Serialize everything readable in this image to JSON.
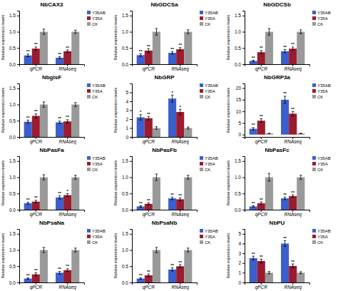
{
  "chart_data": [
    {
      "type": "bar",
      "title": "NbCAX3",
      "y_label": "Relative expression levels",
      "categories": [
        "qPCR",
        "RNAseq"
      ],
      "series": [
        {
          "name": "Y35AB",
          "color": "#3b5fcc",
          "values": [
            0.27,
            0.2
          ],
          "errors": [
            0.04,
            0.03
          ],
          "stars": [
            "**",
            "**"
          ]
        },
        {
          "name": "Y35A",
          "color": "#9b1c2e",
          "values": [
            0.48,
            0.4
          ],
          "errors": [
            0.05,
            0.04
          ],
          "stars": [
            "**",
            "**"
          ]
        },
        {
          "name": "CK",
          "color": "#999999",
          "values": [
            1.0,
            1.0
          ],
          "errors": [
            0.08,
            0.05
          ]
        }
      ],
      "ylim": [
        0,
        1.65
      ],
      "yticks": [
        {
          "value": 0.0,
          "label": "0.0"
        },
        0.5,
        {
          "value": 1.0,
          "label": "1.0"
        },
        1.5
      ],
      "legend": "upper right"
    },
    {
      "type": "bar",
      "title": "NbGDCSa",
      "y_label": "Relative expression levels",
      "categories": [
        "qPCR",
        "RNAseq"
      ],
      "series": [
        {
          "name": "Y35AB",
          "color": "#3b5fcc",
          "values": [
            0.28,
            0.35
          ],
          "errors": [
            0.04,
            0.04
          ],
          "stars": [
            "**",
            "**"
          ]
        },
        {
          "name": "Y35A",
          "color": "#9b1c2e",
          "values": [
            0.42,
            0.46
          ],
          "errors": [
            0.06,
            0.05
          ],
          "stars": [
            "**",
            "**"
          ]
        },
        {
          "name": "CK",
          "color": "#999999",
          "values": [
            1.0,
            1.0
          ],
          "errors": [
            0.1,
            0.06
          ]
        }
      ],
      "ylim": [
        0,
        1.65
      ],
      "yticks": [
        {
          "value": 0.0,
          "label": "0.0"
        },
        0.5,
        {
          "value": 1.0,
          "label": "1.0"
        },
        1.5
      ],
      "legend": "upper right"
    },
    {
      "type": "bar",
      "title": "NbGDCSb",
      "y_label": "Relative expression levels",
      "categories": [
        "qPCR",
        "RNAseq"
      ],
      "series": [
        {
          "name": "Y35AB",
          "color": "#3b5fcc",
          "values": [
            0.1,
            0.4
          ],
          "errors": [
            0.02,
            0.05
          ],
          "stars": [
            "**",
            "**"
          ]
        },
        {
          "name": "Y35A",
          "color": "#9b1c2e",
          "values": [
            0.37,
            0.48
          ],
          "errors": [
            0.05,
            0.05
          ],
          "stars": [
            "**",
            "**"
          ]
        },
        {
          "name": "CK",
          "color": "#999999",
          "values": [
            1.0,
            1.0
          ],
          "errors": [
            0.1,
            0.06
          ]
        }
      ],
      "ylim": [
        0,
        1.65
      ],
      "yticks": [
        {
          "value": 0.0,
          "label": "0.0"
        },
        0.5,
        {
          "value": 1.0,
          "label": "1.0"
        },
        1.5
      ],
      "legend": "upper right"
    },
    {
      "type": "bar",
      "title": "NbglsF",
      "y_label": "Relative expression levels",
      "categories": [
        "qPCR",
        "RNAseq"
      ],
      "series": [
        {
          "name": "Y35AB",
          "color": "#3b5fcc",
          "values": [
            0.47,
            0.45
          ],
          "errors": [
            0.05,
            0.04
          ],
          "stars": [
            "**",
            "**"
          ]
        },
        {
          "name": "Y35A",
          "color": "#9b1c2e",
          "values": [
            0.65,
            0.48
          ],
          "errors": [
            0.06,
            0.05
          ],
          "stars": [
            "**",
            "**"
          ]
        },
        {
          "name": "CK",
          "color": "#999999",
          "values": [
            1.0,
            1.0
          ],
          "errors": [
            0.08,
            0.06
          ]
        }
      ],
      "ylim": [
        0,
        1.65
      ],
      "yticks": [
        {
          "value": 0.0,
          "label": "0.0"
        },
        0.5,
        {
          "value": 1.0,
          "label": "1.0"
        },
        1.5
      ],
      "legend": "upper right"
    },
    {
      "type": "bar",
      "title": "NbGRP",
      "y_label": "Relative expression levels",
      "categories": [
        "qPCR",
        "RNAseq"
      ],
      "series": [
        {
          "name": "Y35AB",
          "color": "#3b5fcc",
          "values": [
            2.2,
            4.3
          ],
          "errors": [
            0.3,
            0.4
          ],
          "stars": [
            "*",
            "*"
          ]
        },
        {
          "name": "Y35A",
          "color": "#9b1c2e",
          "values": [
            2.1,
            2.8
          ],
          "errors": [
            0.2,
            0.3
          ],
          "stars": [
            "**",
            "*"
          ]
        },
        {
          "name": "CK",
          "color": "#999999",
          "values": [
            1.0,
            1.0
          ],
          "errors": [
            0.15,
            0.12
          ]
        }
      ],
      "ylim": [
        0,
        6.0
      ],
      "yticks": [
        0,
        1,
        2,
        3,
        4,
        5
      ],
      "legend": "upper right"
    },
    {
      "type": "bar",
      "title": "NbGRP3a",
      "y_label": "Relative expression levels",
      "categories": [
        "qPCR",
        "RNAseq"
      ],
      "series": [
        {
          "name": "Y35AB",
          "color": "#3b5fcc",
          "values": [
            2.5,
            15.0
          ],
          "errors": [
            0.5,
            1.5
          ],
          "stars": [
            "**",
            "**"
          ]
        },
        {
          "name": "Y35A",
          "color": "#9b1c2e",
          "values": [
            6.0,
            9.0
          ],
          "errors": [
            0.8,
            1.0
          ],
          "stars": [
            "**",
            "**"
          ]
        },
        {
          "name": "CK",
          "color": "#999999",
          "values": [
            0.5,
            0.5
          ],
          "errors": [
            0.1,
            0.1
          ]
        }
      ],
      "ylim": [
        -1,
        22
      ],
      "yticks": [
        0,
        5,
        10,
        15,
        20
      ],
      "legend": "upper right"
    },
    {
      "type": "bar",
      "title": "NbPasFa",
      "y_label": "Relative expression levels",
      "categories": [
        "qPCR",
        "RNAseq"
      ],
      "series": [
        {
          "name": "Y35AB",
          "color": "#3b5fcc",
          "values": [
            0.2,
            0.38
          ],
          "errors": [
            0.03,
            0.05
          ],
          "stars": [
            "**",
            "**"
          ]
        },
        {
          "name": "Y35A",
          "color": "#9b1c2e",
          "values": [
            0.25,
            0.45
          ],
          "errors": [
            0.04,
            0.05
          ],
          "stars": [
            "**",
            "*"
          ]
        },
        {
          "name": "CK",
          "color": "#999999",
          "values": [
            1.0,
            1.0
          ],
          "errors": [
            0.08,
            0.06
          ]
        }
      ],
      "ylim": [
        0,
        1.65
      ],
      "yticks": [
        {
          "value": 0.0,
          "label": "0.0"
        },
        0.5,
        {
          "value": 1.0,
          "label": "1.0"
        },
        1.5
      ],
      "legend": "upper right"
    },
    {
      "type": "bar",
      "title": "NbPasFb",
      "y_label": "Relative expression levels",
      "categories": [
        "qPCR",
        "RNAseq"
      ],
      "series": [
        {
          "name": "Y35AB",
          "color": "#3b5fcc",
          "values": [
            0.1,
            0.35
          ],
          "errors": [
            0.02,
            0.04
          ],
          "stars": [
            "**",
            "**"
          ]
        },
        {
          "name": "Y35A",
          "color": "#9b1c2e",
          "values": [
            0.18,
            0.32
          ],
          "errors": [
            0.03,
            0.04
          ],
          "stars": [
            "**",
            "**"
          ]
        },
        {
          "name": "CK",
          "color": "#999999",
          "values": [
            1.0,
            1.0
          ],
          "errors": [
            0.1,
            0.06
          ]
        }
      ],
      "ylim": [
        0,
        1.65
      ],
      "yticks": [
        {
          "value": 0.0,
          "label": "0.0"
        },
        0.5,
        {
          "value": 1.0,
          "label": "1.0"
        },
        1.5
      ],
      "legend": "upper right"
    },
    {
      "type": "bar",
      "title": "NbPasFc",
      "y_label": "Relative expression levels",
      "categories": [
        "qPCR",
        "RNAseq"
      ],
      "series": [
        {
          "name": "Y35AB",
          "color": "#3b5fcc",
          "values": [
            0.1,
            0.35
          ],
          "errors": [
            0.02,
            0.04
          ],
          "stars": [
            "**",
            "**"
          ]
        },
        {
          "name": "Y35A",
          "color": "#9b1c2e",
          "values": [
            0.2,
            0.42
          ],
          "errors": [
            0.04,
            0.04
          ],
          "stars": [
            "**",
            "**"
          ]
        },
        {
          "name": "CK",
          "color": "#999999",
          "values": [
            1.0,
            1.0
          ],
          "errors": [
            0.12,
            0.06
          ]
        }
      ],
      "ylim": [
        0,
        1.65
      ],
      "yticks": [
        {
          "value": 0.0,
          "label": "0.0"
        },
        0.5,
        {
          "value": 1.0,
          "label": "1.0"
        },
        1.5
      ],
      "legend": "upper right"
    },
    {
      "type": "bar",
      "title": "NbPsaNa",
      "y_label": "Relative expression levels",
      "categories": [
        "qPCR",
        "RNAseq"
      ],
      "series": [
        {
          "name": "Y35AB",
          "color": "#3b5fcc",
          "values": [
            0.12,
            0.3
          ],
          "errors": [
            0.02,
            0.04
          ],
          "stars": [
            "**",
            "**"
          ]
        },
        {
          "name": "Y35A",
          "color": "#9b1c2e",
          "values": [
            0.25,
            0.38
          ],
          "errors": [
            0.05,
            0.04
          ],
          "stars": [
            "**",
            "**"
          ]
        },
        {
          "name": "CK",
          "color": "#999999",
          "values": [
            1.0,
            1.0
          ],
          "errors": [
            0.08,
            0.06
          ]
        }
      ],
      "ylim": [
        0,
        1.65
      ],
      "yticks": [
        {
          "value": 0.0,
          "label": "0.0"
        },
        0.5,
        {
          "value": 1.0,
          "label": "1.0"
        },
        1.5
      ],
      "legend": "upper right"
    },
    {
      "type": "bar",
      "title": "NbPsaNb",
      "y_label": "Relative expression levels",
      "categories": [
        "qPCR",
        "RNAseq"
      ],
      "series": [
        {
          "name": "Y35AB",
          "color": "#3b5fcc",
          "values": [
            0.12,
            0.4
          ],
          "errors": [
            0.02,
            0.05
          ],
          "stars": [
            "**",
            "**"
          ]
        },
        {
          "name": "Y35A",
          "color": "#9b1c2e",
          "values": [
            0.22,
            0.5
          ],
          "errors": [
            0.04,
            0.05
          ],
          "stars": [
            "**",
            "**"
          ]
        },
        {
          "name": "CK",
          "color": "#999999",
          "values": [
            1.0,
            1.0
          ],
          "errors": [
            0.08,
            0.06
          ]
        }
      ],
      "ylim": [
        0,
        1.65
      ],
      "yticks": [
        {
          "value": 0.0,
          "label": "0.0"
        },
        0.5,
        {
          "value": 1.0,
          "label": "1.0"
        },
        1.5
      ],
      "legend": "upper right"
    },
    {
      "type": "bar",
      "title": "NbPU",
      "y_label": "Relative expression levels",
      "categories": [
        "qPCR",
        "RNAseq"
      ],
      "series": [
        {
          "name": "Y35AB",
          "color": "#3b5fcc",
          "values": [
            2.5,
            4.0
          ],
          "errors": [
            0.2,
            0.3
          ],
          "stars": [
            "**",
            "**"
          ]
        },
        {
          "name": "Y35A",
          "color": "#9b1c2e",
          "values": [
            2.2,
            1.7
          ],
          "errors": [
            0.2,
            0.2
          ],
          "stars": [
            "**",
            "**"
          ]
        },
        {
          "name": "CK",
          "color": "#999999",
          "values": [
            1.0,
            1.0
          ],
          "errors": [
            0.12,
            0.1
          ]
        }
      ],
      "ylim": [
        0,
        5.5
      ],
      "yticks": [
        0,
        1,
        2,
        3,
        4,
        5
      ],
      "legend": "upper right"
    }
  ]
}
